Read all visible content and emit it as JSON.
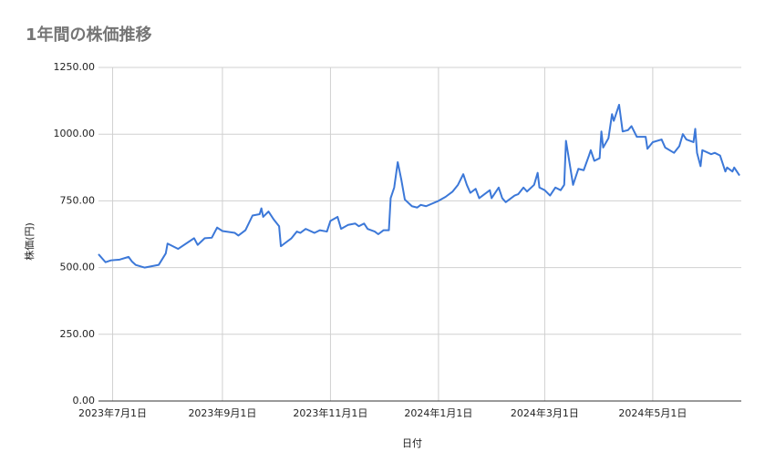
{
  "chart_data": {
    "type": "line",
    "title": "1年間の株価推移",
    "x_label": "日付",
    "y_label": "株価(円)",
    "x": [
      "2023-06-23",
      "2023-06-27",
      "2023-06-30",
      "2023-07-05",
      "2023-07-10",
      "2023-07-12",
      "2023-07-14",
      "2023-07-19",
      "2023-07-27",
      "2023-07-31",
      "2023-08-01",
      "2023-08-07",
      "2023-08-16",
      "2023-08-18",
      "2023-08-22",
      "2023-08-26",
      "2023-08-29",
      "2023-09-01",
      "2023-09-08",
      "2023-09-10",
      "2023-09-14",
      "2023-09-18",
      "2023-09-22",
      "2023-09-23",
      "2023-09-24",
      "2023-09-27",
      "2023-09-30",
      "2023-10-03",
      "2023-10-04",
      "2023-10-06",
      "2023-10-10",
      "2023-10-13",
      "2023-10-15",
      "2023-10-18",
      "2023-10-23",
      "2023-10-26",
      "2023-10-30",
      "2023-11-01",
      "2023-11-05",
      "2023-11-07",
      "2023-11-11",
      "2023-11-15",
      "2023-11-17",
      "2023-11-20",
      "2023-11-22",
      "2023-11-26",
      "2023-11-28",
      "2023-12-01",
      "2023-12-04",
      "2023-12-05",
      "2023-12-07",
      "2023-12-09",
      "2023-12-11",
      "2023-12-13",
      "2023-12-17",
      "2023-12-20",
      "2023-12-22",
      "2023-12-25",
      "2024-01-01",
      "2024-01-05",
      "2024-01-09",
      "2024-01-12",
      "2024-01-15",
      "2024-01-17",
      "2024-01-19",
      "2024-01-22",
      "2024-01-24",
      "2024-01-30",
      "2024-01-31",
      "2024-02-04",
      "2024-02-06",
      "2024-02-08",
      "2024-02-13",
      "2024-02-15",
      "2024-02-18",
      "2024-02-20",
      "2024-02-24",
      "2024-02-26",
      "2024-02-27",
      "2024-03-01",
      "2024-03-04",
      "2024-03-07",
      "2024-03-10",
      "2024-03-12",
      "2024-03-13",
      "2024-03-17",
      "2024-03-20",
      "2024-03-23",
      "2024-03-26",
      "2024-03-27",
      "2024-03-29",
      "2024-04-01",
      "2024-04-02",
      "2024-04-03",
      "2024-04-06",
      "2024-04-08",
      "2024-04-09",
      "2024-04-12",
      "2024-04-14",
      "2024-04-17",
      "2024-04-19",
      "2024-04-22",
      "2024-04-27",
      "2024-04-28",
      "2024-05-01",
      "2024-05-06",
      "2024-05-08",
      "2024-05-13",
      "2024-05-16",
      "2024-05-18",
      "2024-05-20",
      "2024-05-24",
      "2024-05-25",
      "2024-05-26",
      "2024-05-28",
      "2024-05-29",
      "2024-06-03",
      "2024-06-05",
      "2024-06-08",
      "2024-06-11",
      "2024-06-12",
      "2024-06-15",
      "2024-06-16",
      "2024-06-19"
    ],
    "series": [
      {
        "name": "株価(円)",
        "color": "#3c78d8",
        "values": [
          550,
          520,
          527,
          530,
          540,
          522,
          510,
          500,
          510,
          553,
          590,
          570,
          610,
          585,
          610,
          612,
          650,
          637,
          630,
          620,
          640,
          695,
          700,
          722,
          690,
          710,
          680,
          655,
          580,
          590,
          610,
          635,
          630,
          645,
          630,
          640,
          635,
          675,
          690,
          645,
          660,
          665,
          655,
          665,
          645,
          635,
          625,
          640,
          640,
          760,
          800,
          895,
          830,
          755,
          730,
          725,
          735,
          730,
          750,
          765,
          785,
          810,
          850,
          810,
          780,
          795,
          760,
          790,
          760,
          800,
          760,
          745,
          770,
          775,
          800,
          785,
          810,
          855,
          800,
          790,
          770,
          800,
          790,
          810,
          975,
          810,
          870,
          865,
          920,
          940,
          900,
          910,
          1010,
          950,
          985,
          1075,
          1050,
          1110,
          1010,
          1015,
          1030,
          990,
          990,
          945,
          970,
          980,
          950,
          930,
          955,
          1000,
          980,
          970,
          1020,
          930,
          880,
          940,
          925,
          930,
          920,
          860,
          875,
          860,
          875,
          845
        ]
      }
    ],
    "xlim": [
      "2023-06-23",
      "2024-06-20"
    ],
    "xticks": [
      {
        "value": "2023-07-01",
        "label": "2023年7月1日"
      },
      {
        "value": "2023-09-01",
        "label": "2023年9月1日"
      },
      {
        "value": "2023-11-01",
        "label": "2023年11月1日"
      },
      {
        "value": "2024-01-01",
        "label": "2024年1月1日"
      },
      {
        "value": "2024-03-01",
        "label": "2024年3月1日"
      },
      {
        "value": "2024-05-01",
        "label": "2024年5月1日"
      }
    ],
    "ylim": [
      0,
      1250
    ],
    "yticks": [
      {
        "value": 0,
        "label": "0.00"
      },
      {
        "value": 250,
        "label": "250.00"
      },
      {
        "value": 500,
        "label": "500.00"
      },
      {
        "value": 750,
        "label": "750.00"
      },
      {
        "value": 1000,
        "label": "1000.00"
      },
      {
        "value": 1250,
        "label": "1250.00"
      }
    ],
    "grid": true
  }
}
